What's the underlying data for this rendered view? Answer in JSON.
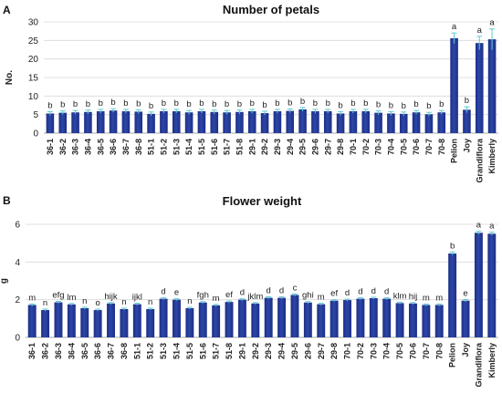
{
  "chart_data": [
    {
      "type": "bar",
      "panel": "A",
      "title": "Number of petals",
      "ylabel": "No.",
      "xlabel": "",
      "ylim": [
        0,
        30
      ],
      "yticks": [
        0,
        5,
        10,
        15,
        20,
        25,
        30
      ],
      "grid": true,
      "categories": [
        "36-1",
        "36-2",
        "36-3",
        "36-4",
        "36-5",
        "36-6",
        "36-7",
        "36-8",
        "51-1",
        "51-2",
        "51-3",
        "51-4",
        "51-5",
        "51-6",
        "51-7",
        "51-8",
        "29-1",
        "29-2",
        "29-3",
        "29-4",
        "29-5",
        "29-6",
        "29-7",
        "29-8",
        "70-1",
        "70-2",
        "70-3",
        "70-4",
        "70-5",
        "70-6",
        "70-7",
        "70-8",
        "Pelion",
        "Joy",
        "Grandiflora",
        "Kimberly"
      ],
      "values": [
        5.3,
        5.5,
        5.6,
        5.7,
        5.9,
        6.1,
        5.9,
        5.8,
        5.2,
        5.9,
        5.9,
        5.6,
        5.9,
        5.7,
        5.6,
        5.7,
        5.9,
        5.4,
        5.9,
        6.0,
        6.4,
        5.9,
        5.9,
        5.3,
        5.9,
        5.9,
        5.5,
        5.3,
        5.2,
        5.6,
        5.1,
        5.6,
        25.6,
        6.3,
        24.3,
        25.3
      ],
      "errors": [
        0.5,
        0.5,
        0.5,
        0.5,
        0.5,
        0.5,
        0.5,
        0.5,
        0.5,
        0.5,
        0.5,
        0.5,
        0.5,
        0.5,
        0.5,
        0.5,
        0.5,
        0.5,
        0.5,
        0.5,
        0.5,
        0.5,
        0.5,
        0.5,
        0.5,
        0.5,
        0.5,
        0.5,
        0.5,
        0.5,
        0.5,
        0.5,
        1.4,
        0.8,
        1.8,
        2.8
      ],
      "labels": [
        "b",
        "b",
        "b",
        "b",
        "b",
        "b",
        "b",
        "b",
        "b",
        "b",
        "b",
        "b",
        "b",
        "b",
        "b",
        "b",
        "b",
        "b",
        "b",
        "b",
        "b",
        "b",
        "b",
        "b",
        "b",
        "b",
        "b",
        "b",
        "b",
        "b",
        "b",
        "b",
        "a",
        "b",
        "a",
        "a"
      ],
      "colors": {
        "bar": "#2d46a8",
        "bar_dark": "#1c2f86",
        "error": "#5ecbd1"
      }
    },
    {
      "type": "bar",
      "panel": "B",
      "title": "Flower weight",
      "ylabel": "g",
      "xlabel": "",
      "ylim": [
        0,
        6
      ],
      "yticks": [
        0,
        2,
        4,
        6
      ],
      "grid": true,
      "categories": [
        "36-1",
        "36-2",
        "36-3",
        "36-4",
        "36-5",
        "36-6",
        "36-7",
        "36-8",
        "51-1",
        "51-2",
        "51-3",
        "51-4",
        "51-5",
        "51-6",
        "51-7",
        "51-8",
        "29-1",
        "29-2",
        "29-3",
        "29-4",
        "29-5",
        "29-6",
        "29-7",
        "29-8",
        "70-1",
        "70-2",
        "70-3",
        "70-4",
        "70-5",
        "70-6",
        "70-7",
        "70-8",
        "Pelion",
        "Joy",
        "Grandiflora",
        "Kimberly"
      ],
      "values": [
        1.72,
        1.45,
        1.86,
        1.75,
        1.55,
        1.45,
        1.8,
        1.5,
        1.76,
        1.5,
        2.05,
        2.0,
        1.55,
        1.85,
        1.7,
        1.88,
        2.0,
        1.8,
        2.1,
        2.1,
        2.25,
        1.85,
        1.76,
        1.95,
        1.98,
        2.05,
        2.08,
        2.05,
        1.82,
        1.8,
        1.72,
        1.72,
        4.45,
        1.95,
        5.55,
        5.5
      ],
      "errors": [
        0.05,
        0.05,
        0.05,
        0.05,
        0.05,
        0.05,
        0.05,
        0.05,
        0.05,
        0.05,
        0.05,
        0.05,
        0.05,
        0.05,
        0.05,
        0.05,
        0.05,
        0.05,
        0.05,
        0.05,
        0.05,
        0.05,
        0.05,
        0.05,
        0.05,
        0.05,
        0.05,
        0.05,
        0.05,
        0.05,
        0.05,
        0.05,
        0.08,
        0.06,
        0.08,
        0.08
      ],
      "labels": [
        "m",
        "n",
        "efg",
        "lm",
        "n",
        "o",
        "hijk",
        "n",
        "ijkl",
        "n",
        "d",
        "e",
        "n",
        "fgh",
        "m",
        "ef",
        "d",
        "jklm",
        "d",
        "d",
        "c",
        "ghi",
        "m",
        "ef",
        "d",
        "d",
        "d",
        "d",
        "klm",
        "hij",
        "m",
        "m",
        "b",
        "e",
        "a",
        "a"
      ],
      "colors": {
        "bar": "#2d46a8",
        "bar_dark": "#1c2f86",
        "error": "#5ecbd1"
      }
    }
  ]
}
